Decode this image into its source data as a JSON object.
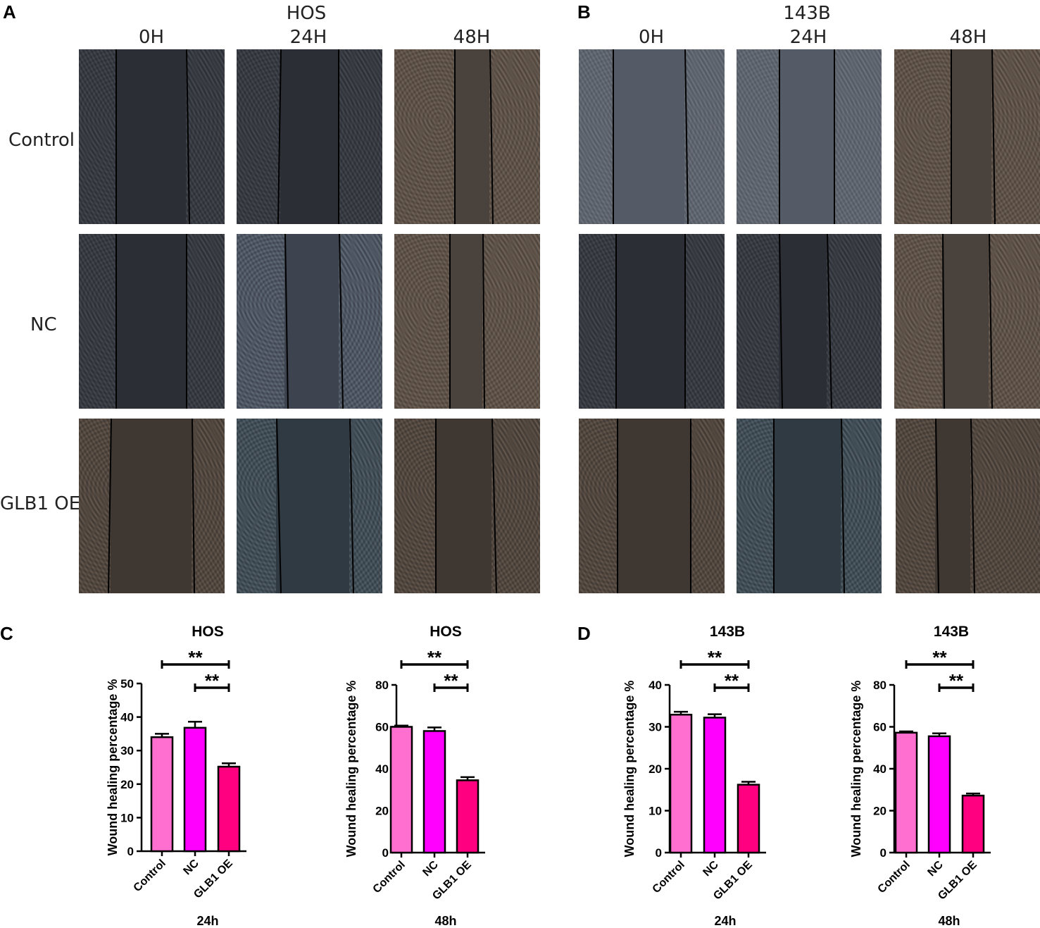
{
  "panels": {
    "A": {
      "letter": "A",
      "cell_line": "HOS",
      "times": [
        "0H",
        "24H",
        "48H"
      ],
      "rows": [
        "Control",
        "NC",
        "GLB1 OE"
      ]
    },
    "B": {
      "letter": "B",
      "cell_line": "143B",
      "times": [
        "0H",
        "24H",
        "48H"
      ],
      "rows": [
        "Control",
        "NC",
        "GLB1 OE"
      ]
    },
    "C": {
      "letter": "C"
    },
    "D": {
      "letter": "D"
    }
  },
  "colors": {
    "control": "#ff6fcf",
    "nc": "#ff00ff",
    "glb1_oe": "#ff0080"
  },
  "chart_data": [
    {
      "type": "bar",
      "panel": "C",
      "title": "HOS",
      "xlabel": "24h",
      "ylabel": "Wound healing percentage %",
      "categories": [
        "Control",
        "NC",
        "GLB1 OE"
      ],
      "values": [
        34,
        36.8,
        25.2
      ],
      "errors": [
        1.0,
        1.8,
        1.0
      ],
      "ylim": [
        0,
        50
      ],
      "yticks": [
        0,
        10,
        20,
        30,
        40,
        50
      ],
      "significance": [
        {
          "from": 0,
          "to": 2,
          "label": "**"
        },
        {
          "from": 1,
          "to": 2,
          "label": "**"
        }
      ]
    },
    {
      "type": "bar",
      "panel": "C",
      "title": "HOS",
      "xlabel": "48h",
      "ylabel": "Wound healing percentage %",
      "categories": [
        "Control",
        "NC",
        "GLB1 OE"
      ],
      "values": [
        60,
        58,
        34.5
      ],
      "errors": [
        0.6,
        1.7,
        1.5
      ],
      "ylim": [
        0,
        80
      ],
      "yticks": [
        0,
        20,
        40,
        60,
        80
      ],
      "significance": [
        {
          "from": 0,
          "to": 2,
          "label": "**"
        },
        {
          "from": 1,
          "to": 2,
          "label": "**"
        }
      ]
    },
    {
      "type": "bar",
      "panel": "D",
      "title": "143B",
      "xlabel": "24h",
      "ylabel": "Wound healing percentage %",
      "categories": [
        "Control",
        "NC",
        "GLB1 OE"
      ],
      "values": [
        32.9,
        32.2,
        16.2
      ],
      "errors": [
        0.7,
        0.8,
        0.7
      ],
      "ylim": [
        0,
        40
      ],
      "yticks": [
        0,
        10,
        20,
        30,
        40
      ],
      "significance": [
        {
          "from": 0,
          "to": 2,
          "label": "**"
        },
        {
          "from": 1,
          "to": 2,
          "label": "**"
        }
      ]
    },
    {
      "type": "bar",
      "panel": "D",
      "title": "143B",
      "xlabel": "48h",
      "ylabel": "Wound healing percentage %",
      "categories": [
        "Control",
        "NC",
        "GLB1 OE"
      ],
      "values": [
        57.2,
        55.5,
        27.2
      ],
      "errors": [
        0.6,
        1.4,
        1.0
      ],
      "ylim": [
        0,
        80
      ],
      "yticks": [
        0,
        20,
        40,
        60,
        80
      ],
      "significance": [
        {
          "from": 0,
          "to": 2,
          "label": "**"
        },
        {
          "from": 1,
          "to": 2,
          "label": "**"
        }
      ]
    }
  ]
}
